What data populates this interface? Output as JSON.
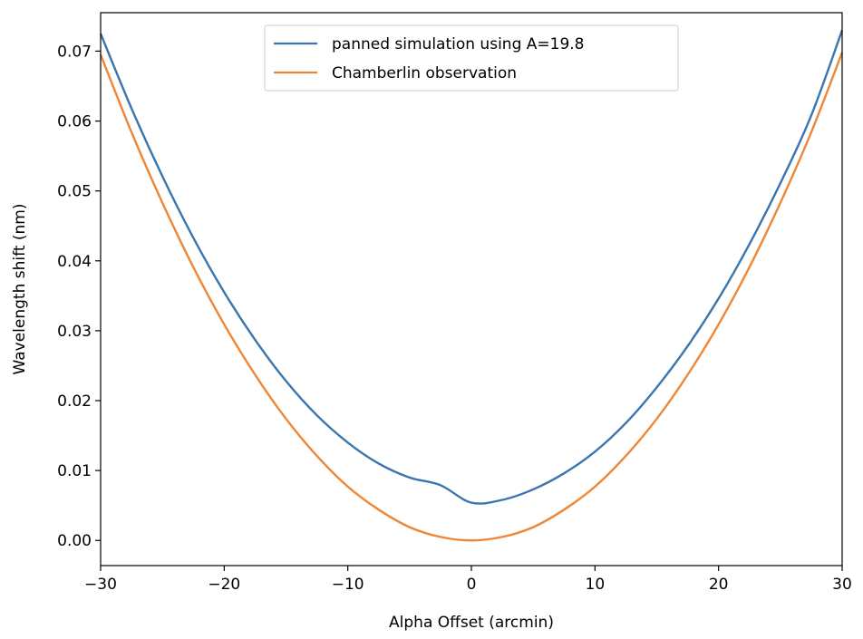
{
  "chart_data": {
    "type": "line",
    "title": "",
    "xlabel": "Alpha Offset (arcmin)",
    "ylabel": "Wavelength shift (nm)",
    "xlim": [
      -30,
      30
    ],
    "ylim": [
      -0.0036,
      0.0755
    ],
    "x_ticks": [
      -30,
      -20,
      -10,
      0,
      10,
      20,
      30
    ],
    "x_tick_labels": [
      "−30",
      "−20",
      "−10",
      "0",
      "10",
      "20",
      "30"
    ],
    "y_ticks": [
      0.0,
      0.01,
      0.02,
      0.03,
      0.04,
      0.05,
      0.06,
      0.07
    ],
    "y_tick_labels": [
      "0.00",
      "0.01",
      "0.02",
      "0.03",
      "0.04",
      "0.05",
      "0.06",
      "0.07"
    ],
    "grid": false,
    "legend_position": "top-center",
    "x": [
      -30,
      -27.5,
      -25,
      -22.5,
      -20,
      -17.5,
      -15,
      -12.5,
      -10,
      -7.5,
      -5,
      -2.5,
      0,
      2.5,
      5,
      7.5,
      10,
      12.5,
      15,
      17.5,
      20,
      22.5,
      25,
      27.5,
      30
    ],
    "series": [
      {
        "name": "panned simulation using A=19.8",
        "color": "#3b75af",
        "values": [
          0.0725,
          0.0618,
          0.0521,
          0.0433,
          0.0355,
          0.0287,
          0.0228,
          0.0179,
          0.014,
          0.011,
          0.009,
          0.0079,
          0.0054,
          0.0058,
          0.0073,
          0.0096,
          0.0127,
          0.0168,
          0.0219,
          0.0278,
          0.0346,
          0.0424,
          0.0511,
          0.0608,
          0.073
        ]
      },
      {
        "name": "Chamberlin observation",
        "color": "#ef8636",
        "values": [
          0.0695,
          0.0584,
          0.0483,
          0.0391,
          0.0309,
          0.0237,
          0.0174,
          0.0121,
          0.0077,
          0.0044,
          0.0019,
          0.0005,
          0.0,
          0.0005,
          0.0019,
          0.0044,
          0.0077,
          0.0121,
          0.0174,
          0.0237,
          0.0309,
          0.0391,
          0.0483,
          0.0584,
          0.0698
        ]
      }
    ]
  }
}
